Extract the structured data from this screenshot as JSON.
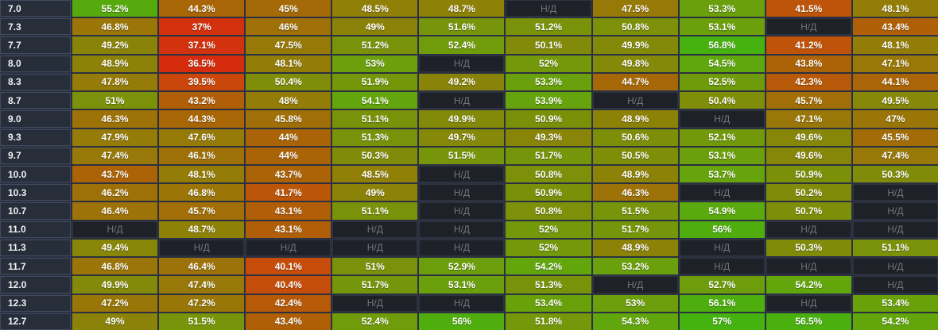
{
  "na_label": "Н/Д",
  "colors": {
    "grid_background": "#2b3140",
    "label_background": "#272d39",
    "label_border": "#414b5f",
    "label_text": "#eef1f5",
    "cell_text": "#ffffff",
    "na_background": "#1e2127",
    "na_text": "#70757c",
    "scale_stops": [
      [
        36,
        "#d7280f"
      ],
      [
        40,
        "#c84b0a"
      ],
      [
        44,
        "#aa6407"
      ],
      [
        48,
        "#947c08"
      ],
      [
        50,
        "#828a09"
      ],
      [
        52,
        "#73980a"
      ],
      [
        54,
        "#64a50c"
      ],
      [
        57,
        "#44b20f"
      ]
    ]
  },
  "heatmap": {
    "rows": [
      {
        "label": "7.0",
        "cells": [
          "55.2%",
          "44.3%",
          "45%",
          "48.5%",
          "48.7%",
          null,
          "47.5%",
          "53.3%",
          "41.5%",
          "48.1%"
        ]
      },
      {
        "label": "7.3",
        "cells": [
          "46.8%",
          "37%",
          "46%",
          "49%",
          "51.6%",
          "51.2%",
          "50.8%",
          "53.1%",
          null,
          "43.4%"
        ]
      },
      {
        "label": "7.7",
        "cells": [
          "49.2%",
          "37.1%",
          "47.5%",
          "51.2%",
          "52.4%",
          "50.1%",
          "49.9%",
          "56.8%",
          "41.2%",
          "48.1%"
        ]
      },
      {
        "label": "8.0",
        "cells": [
          "48.9%",
          "36.5%",
          "48.1%",
          "53%",
          null,
          "52%",
          "49.8%",
          "54.5%",
          "43.8%",
          "47.1%"
        ]
      },
      {
        "label": "8.3",
        "cells": [
          "47.8%",
          "39.5%",
          "50.4%",
          "51.9%",
          "49.2%",
          "53.3%",
          "44.7%",
          "52.5%",
          "42.3%",
          "44.1%"
        ]
      },
      {
        "label": "8.7",
        "cells": [
          "51%",
          "43.2%",
          "48%",
          "54.1%",
          null,
          "53.9%",
          null,
          "50.4%",
          "45.7%",
          "49.5%"
        ]
      },
      {
        "label": "9.0",
        "cells": [
          "46.3%",
          "44.3%",
          "45.8%",
          "51.1%",
          "49.9%",
          "50.9%",
          "48.9%",
          null,
          "47.1%",
          "47%"
        ]
      },
      {
        "label": "9.3",
        "cells": [
          "47.9%",
          "47.6%",
          "44%",
          "51.3%",
          "49.7%",
          "49.3%",
          "50.6%",
          "52.1%",
          "49.6%",
          "45.5%"
        ]
      },
      {
        "label": "9.7",
        "cells": [
          "47.4%",
          "46.1%",
          "44%",
          "50.3%",
          "51.5%",
          "51.7%",
          "50.5%",
          "53.1%",
          "49.6%",
          "47.4%"
        ]
      },
      {
        "label": "10.0",
        "cells": [
          "43.7%",
          "48.1%",
          "43.7%",
          "48.5%",
          null,
          "50.8%",
          "48.9%",
          "53.7%",
          "50.9%",
          "50.3%"
        ]
      },
      {
        "label": "10.3",
        "cells": [
          "46.2%",
          "46.8%",
          "41.7%",
          "49%",
          null,
          "50.9%",
          "46.3%",
          null,
          "50.2%",
          null
        ]
      },
      {
        "label": "10.7",
        "cells": [
          "46.4%",
          "45.7%",
          "43.1%",
          "51.1%",
          null,
          "50.8%",
          "51.5%",
          "54.9%",
          "50.7%",
          null
        ]
      },
      {
        "label": "11.0",
        "cells": [
          null,
          "48.7%",
          "43.1%",
          null,
          null,
          "52%",
          "51.7%",
          "56%",
          null,
          null
        ]
      },
      {
        "label": "11.3",
        "cells": [
          "49.4%",
          null,
          null,
          null,
          null,
          "52%",
          "48.9%",
          null,
          "50.3%",
          "51.1%"
        ]
      },
      {
        "label": "11.7",
        "cells": [
          "46.8%",
          "46.4%",
          "40.1%",
          "51%",
          "52.9%",
          "54.2%",
          "53.2%",
          null,
          null,
          null
        ]
      },
      {
        "label": "12.0",
        "cells": [
          "49.9%",
          "47.4%",
          "40.4%",
          "51.7%",
          "53.1%",
          "51.3%",
          null,
          "52.7%",
          "54.2%",
          null
        ]
      },
      {
        "label": "12.3",
        "cells": [
          "47.2%",
          "47.2%",
          "42.4%",
          null,
          null,
          "53.4%",
          "53%",
          "56.1%",
          null,
          "53.4%"
        ]
      },
      {
        "label": "12.7",
        "cells": [
          "49%",
          "51.5%",
          "43.4%",
          "52.4%",
          "56%",
          "51.8%",
          "54.3%",
          "57%",
          "56.5%",
          "54.2%"
        ]
      }
    ]
  },
  "chart_data": {
    "type": "heatmap",
    "unit": "%",
    "na_label": "Н/Д",
    "row_labels": [
      "7.0",
      "7.3",
      "7.7",
      "8.0",
      "8.3",
      "8.7",
      "9.0",
      "9.3",
      "9.7",
      "10.0",
      "10.3",
      "10.7",
      "11.0",
      "11.3",
      "11.7",
      "12.0",
      "12.3",
      "12.7"
    ],
    "values": [
      [
        55.2,
        44.3,
        45,
        48.5,
        48.7,
        null,
        47.5,
        53.3,
        41.5,
        48.1
      ],
      [
        46.8,
        37,
        46,
        49,
        51.6,
        51.2,
        50.8,
        53.1,
        null,
        43.4
      ],
      [
        49.2,
        37.1,
        47.5,
        51.2,
        52.4,
        50.1,
        49.9,
        56.8,
        41.2,
        48.1
      ],
      [
        48.9,
        36.5,
        48.1,
        53,
        null,
        52,
        49.8,
        54.5,
        43.8,
        47.1
      ],
      [
        47.8,
        39.5,
        50.4,
        51.9,
        49.2,
        53.3,
        44.7,
        52.5,
        42.3,
        44.1
      ],
      [
        51,
        43.2,
        48,
        54.1,
        null,
        53.9,
        null,
        50.4,
        45.7,
        49.5
      ],
      [
        46.3,
        44.3,
        45.8,
        51.1,
        49.9,
        50.9,
        48.9,
        null,
        47.1,
        47
      ],
      [
        47.9,
        47.6,
        44,
        51.3,
        49.7,
        49.3,
        50.6,
        52.1,
        49.6,
        45.5
      ],
      [
        47.4,
        46.1,
        44,
        50.3,
        51.5,
        51.7,
        50.5,
        53.1,
        49.6,
        47.4
      ],
      [
        43.7,
        48.1,
        43.7,
        48.5,
        null,
        50.8,
        48.9,
        53.7,
        50.9,
        50.3
      ],
      [
        46.2,
        46.8,
        41.7,
        49,
        null,
        50.9,
        46.3,
        null,
        50.2,
        null
      ],
      [
        46.4,
        45.7,
        43.1,
        51.1,
        null,
        50.8,
        51.5,
        54.9,
        50.7,
        null
      ],
      [
        null,
        48.7,
        43.1,
        null,
        null,
        52,
        51.7,
        56,
        null,
        null
      ],
      [
        49.4,
        null,
        null,
        null,
        null,
        52,
        48.9,
        null,
        50.3,
        51.1
      ],
      [
        46.8,
        46.4,
        40.1,
        51,
        52.9,
        54.2,
        53.2,
        null,
        null,
        null
      ],
      [
        49.9,
        47.4,
        40.4,
        51.7,
        53.1,
        51.3,
        null,
        52.7,
        54.2,
        null
      ],
      [
        47.2,
        47.2,
        42.4,
        null,
        null,
        53.4,
        53,
        56.1,
        null,
        53.4
      ],
      [
        49,
        51.5,
        43.4,
        52.4,
        56,
        51.8,
        54.3,
        57,
        56.5,
        54.2
      ]
    ],
    "value_range": [
      36.5,
      57
    ],
    "color_low": "#d7280f",
    "color_high": "#44b20f",
    "legend": "none",
    "grid": true
  }
}
